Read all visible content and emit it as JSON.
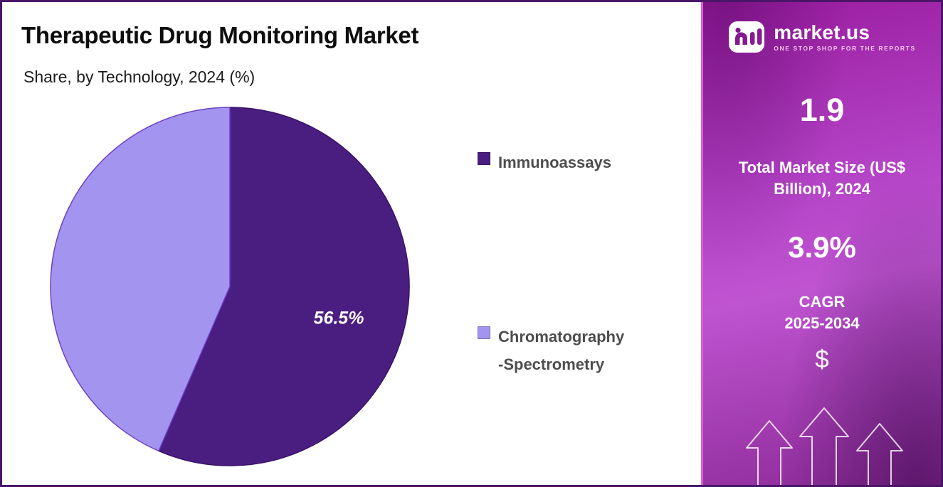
{
  "header": {
    "title": "Therapeutic Drug Monitoring Market",
    "subtitle": "Share, by Technology, 2024 (%)"
  },
  "chart_data": {
    "type": "pie",
    "title": "Therapeutic Drug Monitoring Market",
    "subtitle": "Share, by Technology, 2024 (%)",
    "unit": "%",
    "start_angle_deg": 0,
    "direction": "clockwise",
    "legend_position": "right",
    "slices": [
      {
        "label": "Immunoassays",
        "legend_text": "Immunoassays",
        "value": 56.5,
        "data_label": "56.5%",
        "show_label": true,
        "color": "#4A1D80",
        "stroke": "#3A1468"
      },
      {
        "label": "Chromatography-Spectrometry",
        "legend_text": "Chromatography\n -Spectrometry",
        "value": 43.5,
        "data_label": "",
        "show_label": false,
        "color": "#A394F0",
        "stroke": "#6C41C0"
      }
    ]
  },
  "sidebar": {
    "brand": {
      "name": "market.us",
      "tagline": "ONE STOP SHOP FOR THE REPORTS"
    },
    "market_size_value": "1.9",
    "market_size_label": "Total Market Size (US$ Billion), 2024",
    "cagr_value": "3.9%",
    "cagr_label": "CAGR\n2025-2034",
    "dollar_symbol": "$"
  },
  "colors": {
    "slice_dark": "#4A1D80",
    "slice_light": "#A394F0",
    "sidebar_top": "#9A1C9F",
    "sidebar_mid": "#BF54D1",
    "sidebar_bottom": "#8C2A97",
    "outer_border": "#4A1566",
    "title_text": "#0D0D0D",
    "legend_text": "#4D4D4D"
  }
}
